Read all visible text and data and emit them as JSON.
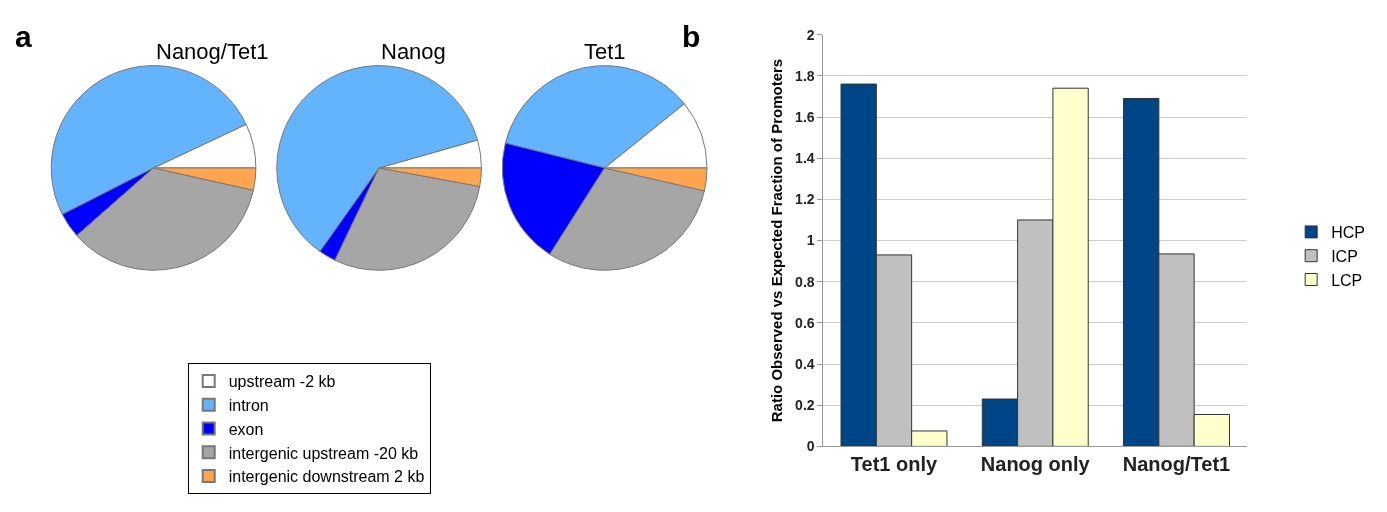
{
  "chart_data": [
    {
      "type": "pie",
      "title": "Nanog/Tet1",
      "categories": [
        "upstream -2 kb",
        "intron",
        "exon",
        "intergenic upstream -20 kb",
        "intergenic downstream 2 kb"
      ],
      "values": [
        7,
        50.5,
        4,
        35,
        3.5
      ],
      "colors": [
        "#ffffff",
        "#63b4fc",
        "#0000ff",
        "#a6a6a6",
        "#ffa54f"
      ],
      "legend": "bottom",
      "annotations": [
        "a"
      ]
    },
    {
      "type": "pie",
      "title": "Nanog",
      "categories": [
        null,
        null,
        null,
        null,
        null
      ],
      "values": [
        4.4,
        60.8,
        2.7,
        29.2,
        2.9
      ],
      "colors": [
        "#ffffff",
        "#63b4fc",
        "#0000ff",
        "#a6a6a6",
        "#ffa54f"
      ]
    },
    {
      "type": "pie",
      "title": "Tet1",
      "categories": [
        null,
        null,
        null,
        null,
        null
      ],
      "values": [
        10.8,
        35.3,
        19.9,
        30.4,
        3.6
      ],
      "colors": [
        "#ffffff",
        "#63b4fc",
        "#0000ff",
        "#a6a6a6",
        "#ffa54f"
      ]
    },
    {
      "type": "bar",
      "ylabel": "Ratio Observed vs Expected Fraction of Promoters",
      "categories": [
        "Tet1 only",
        "Nanog only",
        "Nanog/Tet1"
      ],
      "series": [
        {
          "name": "HCP",
          "color": "#004586",
          "values": [
            1.76,
            0.23,
            1.69
          ]
        },
        {
          "name": "ICP",
          "color": "#c0c0c0",
          "values": [
            0.93,
            1.1,
            0.935
          ]
        },
        {
          "name": "LCP",
          "color": "#ffffcc",
          "values": [
            0.075,
            1.74,
            0.155
          ]
        }
      ],
      "ylim": [
        0,
        2
      ],
      "yticks": [
        0,
        0.2,
        0.4,
        0.6,
        0.8,
        1,
        1.2,
        1.4,
        1.6,
        1.8,
        2
      ],
      "grid": "y",
      "legend": "right",
      "annotations": [
        "b"
      ]
    }
  ]
}
